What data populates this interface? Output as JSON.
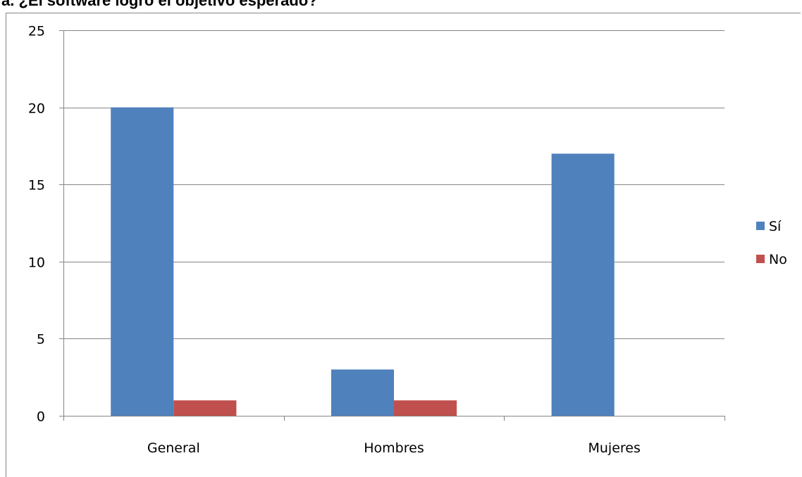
{
  "heading": "a. ¿El software logró el objetivo esperado?",
  "chart_data": {
    "type": "bar",
    "categories": [
      "General",
      "Hombres",
      "Mujeres"
    ],
    "series": [
      {
        "name": "Sí",
        "values": [
          20,
          3,
          17
        ],
        "color": "#4F81BD"
      },
      {
        "name": "No",
        "values": [
          1,
          1,
          0
        ],
        "color": "#C0504D"
      }
    ],
    "ylim": [
      0,
      25
    ],
    "yticks": [
      "0",
      "5",
      "10",
      "15",
      "20",
      "25"
    ],
    "grid": true,
    "legend_position": "right",
    "title": "",
    "xlabel": "",
    "ylabel": ""
  }
}
